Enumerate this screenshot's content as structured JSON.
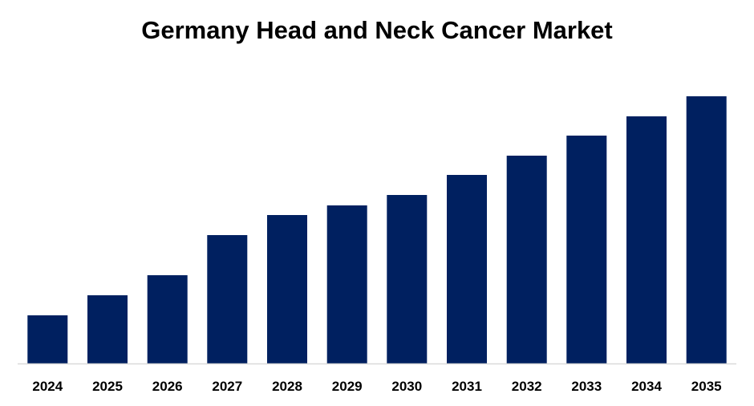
{
  "chart_data": {
    "type": "bar",
    "title": "Germany Head and Neck Cancer Market",
    "categories": [
      "2024",
      "2025",
      "2026",
      "2027",
      "2028",
      "2029",
      "2030",
      "2031",
      "2032",
      "2033",
      "2034",
      "2035"
    ],
    "values": [
      60,
      85,
      110,
      160,
      185,
      197,
      210,
      235,
      259,
      284,
      308,
      333
    ],
    "ylim": [
      0,
      340
    ],
    "colors": {
      "bar": "#002060",
      "axis": "#d9d9d9"
    },
    "grid": false,
    "legend": "none"
  }
}
